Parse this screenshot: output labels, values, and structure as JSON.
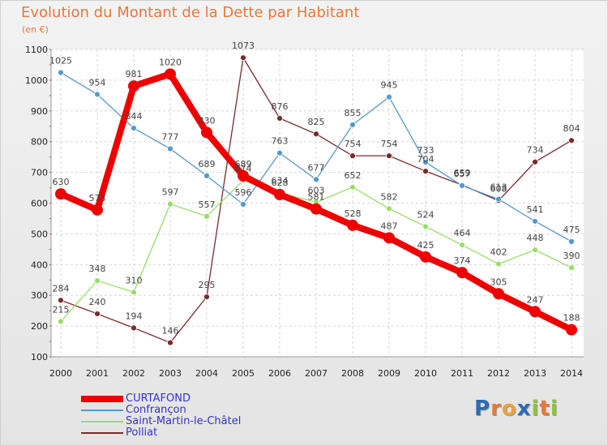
{
  "title": "Evolution du Montant de la Dette par Habitant",
  "subtitle": "(en €)",
  "logo": {
    "text": "Proxiti",
    "letters": [
      "P",
      "r",
      "o",
      "x",
      "i",
      "t",
      "i"
    ],
    "colors": [
      "#2a6bb5",
      "#e8773a",
      "#e8a33a",
      "#2a6bb5",
      "#8cc43a",
      "#e8773a",
      "#8cc43a"
    ]
  },
  "chart_data": {
    "type": "line",
    "title": "Evolution du Montant de la Dette par Habitant",
    "ylabel": "(en €)",
    "xlabel": "",
    "ylim": [
      100,
      1100
    ],
    "yticks": [
      100,
      200,
      300,
      400,
      500,
      600,
      700,
      800,
      900,
      1000,
      1100
    ],
    "categories": [
      "2000",
      "2001",
      "2002",
      "2003",
      "2004",
      "2005",
      "2006",
      "2007",
      "2008",
      "2009",
      "2010",
      "2011",
      "2012",
      "2013",
      "2014"
    ],
    "series": [
      {
        "name": "CURTAFOND",
        "color": "#ee0000",
        "values": [
          630,
          578,
          981,
          1020,
          830,
          689,
          628,
          581,
          528,
          487,
          425,
          374,
          305,
          247,
          188
        ]
      },
      {
        "name": "Confrançon",
        "color": "#5599cc",
        "values": [
          1025,
          954,
          844,
          777,
          689,
          596,
          763,
          677,
          855,
          945,
          733,
          657,
          613,
          541,
          475
        ]
      },
      {
        "name": "Saint-Martin-le-Châtel",
        "color": "#99dd66",
        "values": [
          215,
          348,
          310,
          597,
          557,
          674,
          634,
          603,
          652,
          582,
          524,
          464,
          402,
          448,
          390
        ]
      },
      {
        "name": "Polliat",
        "color": "#7a2a2a",
        "values": [
          284,
          240,
          194,
          146,
          295,
          1073,
          876,
          825,
          754,
          754,
          704,
          659,
          608,
          734,
          804
        ]
      }
    ]
  }
}
